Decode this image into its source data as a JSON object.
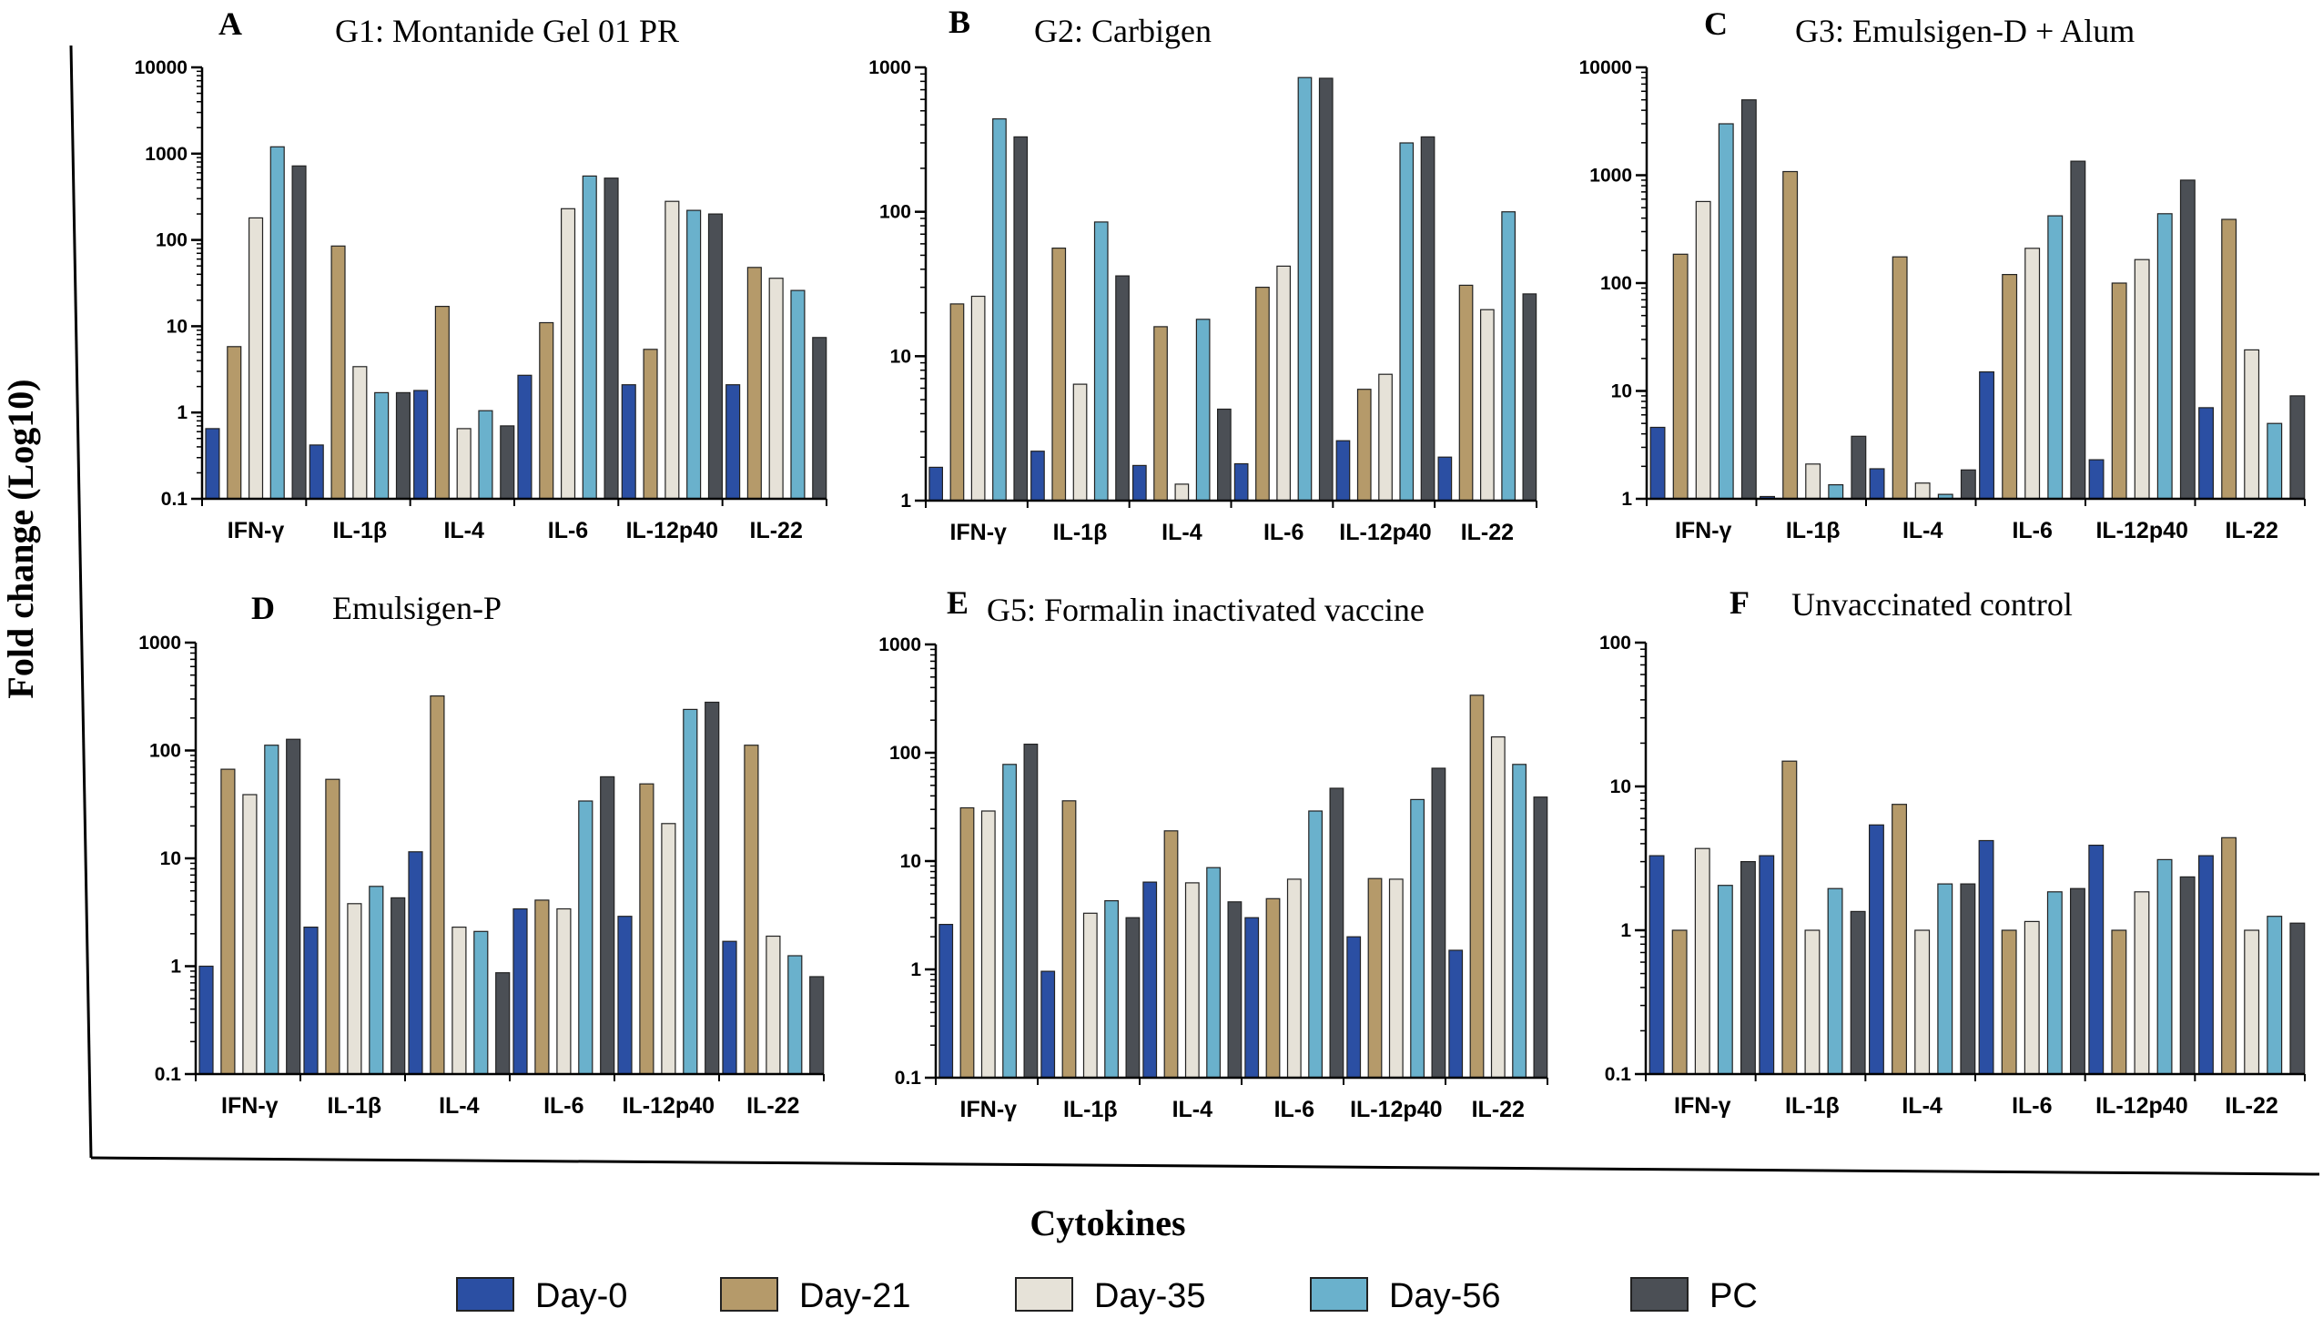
{
  "figure": {
    "ylabel": "Fold change (Log10)",
    "xlabel": "Cytokines"
  },
  "legend": {
    "items": [
      {
        "label": "Day-0",
        "color": "#2b4fa3"
      },
      {
        "label": "Day-21",
        "color": "#b59a6a"
      },
      {
        "label": "Day-35",
        "color": "#e6e2d8"
      },
      {
        "label": "Day-56",
        "color": "#6ab1cc"
      },
      {
        "label": "PC",
        "color": "#4b4f55"
      }
    ]
  },
  "chart_data": [
    {
      "type": "bar",
      "panel": "A",
      "title": "G1: Montanide Gel 01 PR",
      "yscale": "log",
      "ylim": [
        0.1,
        10000
      ],
      "yticks": [
        "0.1",
        "1",
        "10",
        "100",
        "1000",
        "10000"
      ],
      "categories": [
        "IFN-γ",
        "IL-1β",
        "IL-4",
        "IL-6",
        "IL-12p40",
        "IL-22"
      ],
      "series": [
        {
          "name": "Day-0",
          "values": [
            0.65,
            0.42,
            1.8,
            2.7,
            2.1,
            2.1
          ]
        },
        {
          "name": "Day-21",
          "values": [
            5.8,
            85,
            17,
            11,
            5.4,
            48
          ]
        },
        {
          "name": "Day-35",
          "values": [
            180,
            3.4,
            0.65,
            230,
            280,
            36
          ]
        },
        {
          "name": "Day-56",
          "values": [
            1200,
            1.7,
            1.05,
            550,
            220,
            26
          ]
        },
        {
          "name": "PC",
          "values": [
            720,
            1.7,
            0.7,
            520,
            200,
            7.4
          ]
        }
      ]
    },
    {
      "type": "bar",
      "panel": "B",
      "title": "G2: Carbigen",
      "yscale": "log",
      "ylim": [
        1,
        1000
      ],
      "yticks": [
        "1",
        "10",
        "100",
        "1000"
      ],
      "categories": [
        "IFN-γ",
        "IL-1β",
        "IL-4",
        "IL-6",
        "IL-12p40",
        "IL-22"
      ],
      "series": [
        {
          "name": "Day-0",
          "values": [
            1.7,
            2.2,
            1.75,
            1.8,
            2.6,
            2.0
          ]
        },
        {
          "name": "Day-21",
          "values": [
            23,
            56,
            16,
            30,
            5.9,
            31
          ]
        },
        {
          "name": "Day-35",
          "values": [
            26,
            6.4,
            1.3,
            42,
            7.5,
            21
          ]
        },
        {
          "name": "Day-56",
          "values": [
            440,
            85,
            18,
            850,
            300,
            100
          ]
        },
        {
          "name": "PC",
          "values": [
            330,
            36,
            4.3,
            840,
            330,
            27
          ]
        }
      ]
    },
    {
      "type": "bar",
      "panel": "C",
      "title": "G3: Emulsigen-D + Alum",
      "yscale": "log",
      "ylim": [
        1,
        10000
      ],
      "yticks": [
        "1",
        "10",
        "100",
        "1000",
        "10000"
      ],
      "categories": [
        "IFN-γ",
        "IL-1β",
        "IL-4",
        "IL-6",
        "IL-12p40",
        "IL-22"
      ],
      "series": [
        {
          "name": "Day-0",
          "values": [
            4.6,
            1.05,
            1.9,
            15,
            2.3,
            7.0
          ]
        },
        {
          "name": "Day-21",
          "values": [
            185,
            1080,
            175,
            120,
            100,
            390
          ]
        },
        {
          "name": "Day-35",
          "values": [
            570,
            2.1,
            1.4,
            210,
            165,
            24
          ]
        },
        {
          "name": "Day-56",
          "values": [
            3000,
            1.35,
            1.1,
            420,
            440,
            5.0
          ]
        },
        {
          "name": "PC",
          "values": [
            5000,
            3.8,
            1.85,
            1350,
            900,
            9.0
          ]
        }
      ]
    },
    {
      "type": "bar",
      "panel": "D",
      "title": "Emulsigen-P",
      "yscale": "log",
      "ylim": [
        0.1,
        1000
      ],
      "yticks": [
        "0.1",
        "1",
        "10",
        "100",
        "1000"
      ],
      "categories": [
        "IFN-γ",
        "IL-1β",
        "IL-4",
        "IL-6",
        "IL-12p40",
        "IL-22"
      ],
      "series": [
        {
          "name": "Day-0",
          "values": [
            1.0,
            2.3,
            11.5,
            3.4,
            2.9,
            1.7
          ]
        },
        {
          "name": "Day-21",
          "values": [
            67,
            54,
            320,
            4.1,
            49,
            112
          ]
        },
        {
          "name": "Day-35",
          "values": [
            39,
            3.8,
            2.3,
            3.4,
            21,
            1.9
          ]
        },
        {
          "name": "Day-56",
          "values": [
            112,
            5.5,
            2.1,
            34,
            240,
            1.25
          ]
        },
        {
          "name": "PC",
          "values": [
            127,
            4.3,
            0.87,
            57,
            280,
            0.8
          ]
        }
      ]
    },
    {
      "type": "bar",
      "panel": "E",
      "title": "G5: Formalin inactivated vaccine",
      "yscale": "log",
      "ylim": [
        0.1,
        1000
      ],
      "yticks": [
        "0.1",
        "1",
        "10",
        "100",
        "1000"
      ],
      "categories": [
        "IFN-γ",
        "IL-1β",
        "IL-4",
        "IL-6",
        "IL-12p40",
        "IL-22"
      ],
      "series": [
        {
          "name": "Day-0",
          "values": [
            2.6,
            0.96,
            6.4,
            3.0,
            2.0,
            1.5
          ]
        },
        {
          "name": "Day-21",
          "values": [
            31,
            36,
            19,
            4.5,
            6.9,
            340
          ]
        },
        {
          "name": "Day-35",
          "values": [
            29,
            3.3,
            6.3,
            6.8,
            6.8,
            140
          ]
        },
        {
          "name": "Day-56",
          "values": [
            78,
            4.3,
            8.7,
            29,
            37,
            78
          ]
        },
        {
          "name": "PC",
          "values": [
            120,
            3.0,
            4.2,
            47,
            72,
            39
          ]
        }
      ]
    },
    {
      "type": "bar",
      "panel": "F",
      "title": "Unvaccinated control",
      "yscale": "log",
      "ylim": [
        0.1,
        100
      ],
      "yticks": [
        "0.1",
        "1",
        "10",
        "100"
      ],
      "categories": [
        "IFN-γ",
        "IL-1β",
        "IL-4",
        "IL-6",
        "IL-12p40",
        "IL-22"
      ],
      "series": [
        {
          "name": "Day-0",
          "values": [
            3.3,
            3.3,
            5.4,
            4.2,
            3.9,
            3.3
          ]
        },
        {
          "name": "Day-21",
          "values": [
            1.0,
            15,
            7.5,
            1.0,
            1.0,
            4.4
          ]
        },
        {
          "name": "Day-35",
          "values": [
            3.7,
            1.0,
            1.0,
            1.15,
            1.85,
            1.0
          ]
        },
        {
          "name": "Day-56",
          "values": [
            2.05,
            1.95,
            2.1,
            1.85,
            3.1,
            1.25
          ]
        },
        {
          "name": "PC",
          "values": [
            3.0,
            1.35,
            2.1,
            1.95,
            2.35,
            1.12
          ]
        }
      ]
    }
  ]
}
